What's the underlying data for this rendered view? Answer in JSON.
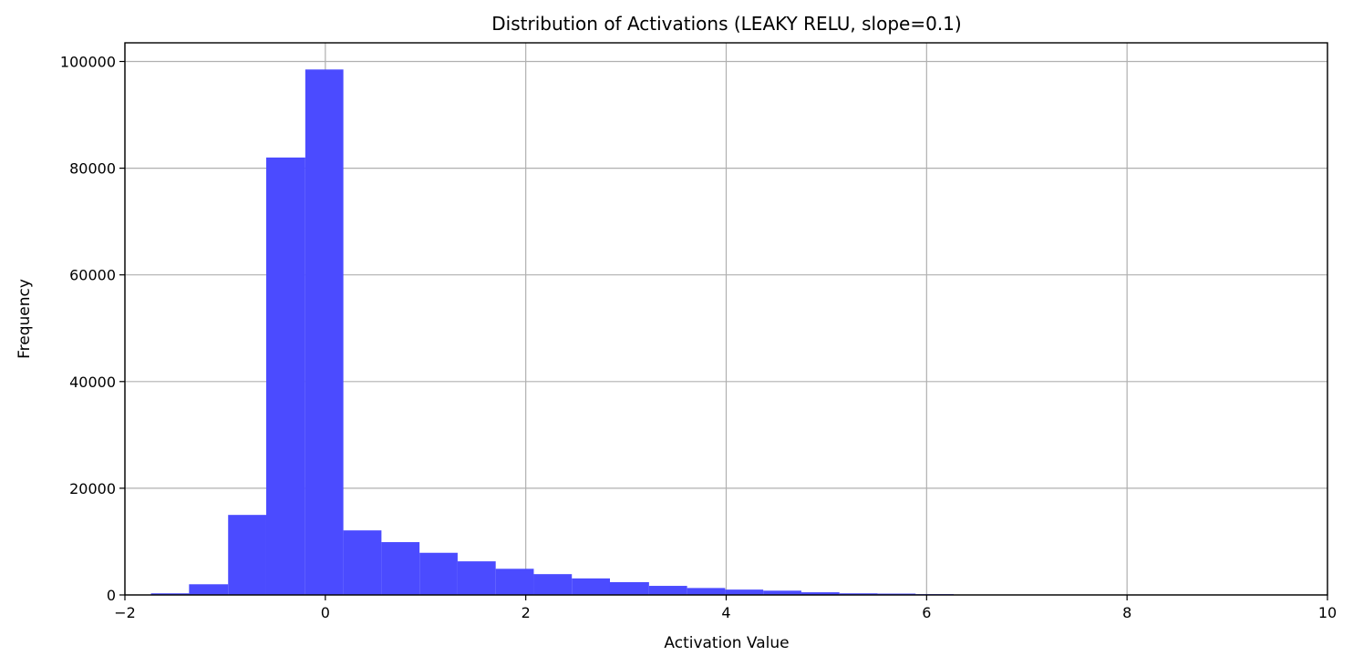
{
  "chart_data": {
    "type": "bar",
    "title": "Distribution of Activations (LEAKY RELU, slope=0.1)",
    "xlabel": "Activation Value",
    "ylabel": "Frequency",
    "xlim": [
      -2,
      10
    ],
    "ylim": [
      0,
      103500
    ],
    "xticks": [
      -2,
      0,
      2,
      4,
      6,
      8,
      10
    ],
    "xtick_labels": [
      "−2",
      "0",
      "2",
      "4",
      "6",
      "8",
      "10"
    ],
    "yticks": [
      0,
      20000,
      40000,
      60000,
      80000,
      100000
    ],
    "ytick_labels": [
      "0",
      "20000",
      "40000",
      "60000",
      "80000",
      "100000"
    ],
    "grid": true,
    "bar_color": "#4b4bff",
    "bins": [
      {
        "x0": -1.74,
        "x1": -1.36,
        "value": 300
      },
      {
        "x0": -1.36,
        "x1": -0.97,
        "value": 2000
      },
      {
        "x0": -0.97,
        "x1": -0.59,
        "value": 15000
      },
      {
        "x0": -0.59,
        "x1": -0.2,
        "value": 82000
      },
      {
        "x0": -0.2,
        "x1": 0.18,
        "value": 98500
      },
      {
        "x0": 0.18,
        "x1": 0.56,
        "value": 12100
      },
      {
        "x0": 0.56,
        "x1": 0.94,
        "value": 9900
      },
      {
        "x0": 0.94,
        "x1": 1.32,
        "value": 7900
      },
      {
        "x0": 1.32,
        "x1": 1.7,
        "value": 6300
      },
      {
        "x0": 1.7,
        "x1": 2.08,
        "value": 4900
      },
      {
        "x0": 2.08,
        "x1": 2.46,
        "value": 3900
      },
      {
        "x0": 2.46,
        "x1": 2.84,
        "value": 3100
      },
      {
        "x0": 2.84,
        "x1": 3.23,
        "value": 2400
      },
      {
        "x0": 3.23,
        "x1": 3.61,
        "value": 1700
      },
      {
        "x0": 3.61,
        "x1": 3.99,
        "value": 1300
      },
      {
        "x0": 3.99,
        "x1": 4.37,
        "value": 1000
      },
      {
        "x0": 4.37,
        "x1": 4.75,
        "value": 800
      },
      {
        "x0": 4.75,
        "x1": 5.13,
        "value": 500
      },
      {
        "x0": 5.13,
        "x1": 5.51,
        "value": 300
      },
      {
        "x0": 5.51,
        "x1": 5.89,
        "value": 250
      },
      {
        "x0": 5.89,
        "x1": 6.27,
        "value": 150
      }
    ]
  }
}
